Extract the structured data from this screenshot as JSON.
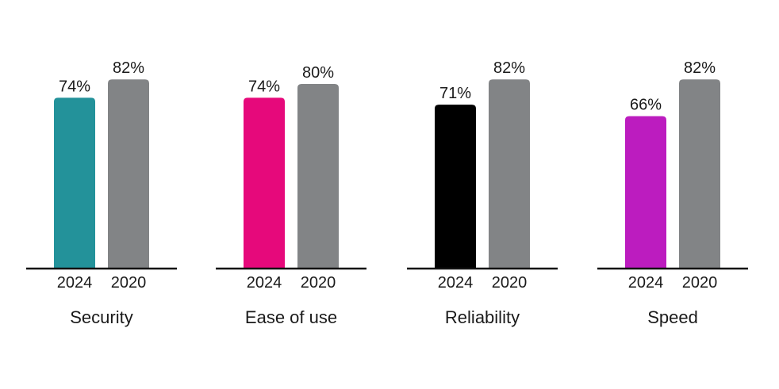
{
  "chart_data": {
    "type": "bar",
    "title": "",
    "xlabel": "",
    "ylabel": "",
    "ylim": [
      0,
      100
    ],
    "grid": false,
    "value_suffix": "%",
    "groups": [
      {
        "category": "Security",
        "bars": [
          {
            "label": "2024",
            "value": 74,
            "value_label": "74%",
            "color": "#23929A"
          },
          {
            "label": "2020",
            "value": 82,
            "value_label": "82%",
            "color": "#828486"
          }
        ]
      },
      {
        "category": "Ease of use",
        "bars": [
          {
            "label": "2024",
            "value": 74,
            "value_label": "74%",
            "color": "#E6097B"
          },
          {
            "label": "2020",
            "value": 80,
            "value_label": "80%",
            "color": "#828486"
          }
        ]
      },
      {
        "category": "Reliability",
        "bars": [
          {
            "label": "2024",
            "value": 71,
            "value_label": "71%",
            "color": "#000000"
          },
          {
            "label": "2020",
            "value": 82,
            "value_label": "82%",
            "color": "#828486"
          }
        ]
      },
      {
        "category": "Speed",
        "bars": [
          {
            "label": "2024",
            "value": 66,
            "value_label": "66%",
            "color": "#BC1CBF"
          },
          {
            "label": "2020",
            "value": 82,
            "value_label": "82%",
            "color": "#828486"
          }
        ]
      }
    ]
  }
}
